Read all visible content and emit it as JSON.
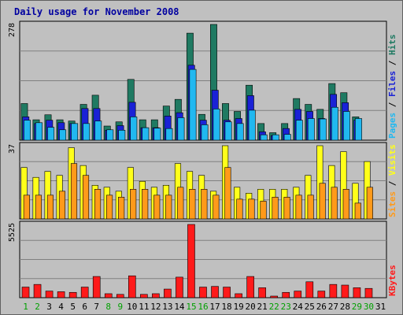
{
  "chart_data": {
    "title": "Daily usage for November 2008",
    "type": "bar",
    "x": [
      "1",
      "2",
      "3",
      "4",
      "5",
      "6",
      "7",
      "8",
      "9",
      "10",
      "11",
      "12",
      "13",
      "14",
      "15",
      "16",
      "17",
      "18",
      "19",
      "20",
      "21",
      "22",
      "23",
      "24",
      "25",
      "26",
      "27",
      "28",
      "29",
      "30",
      "31"
    ],
    "weekend_days": [
      "1",
      "2",
      "8",
      "9",
      "15",
      "16",
      "22",
      "23",
      "29",
      "30"
    ],
    "panels": [
      {
        "name": "hits-files-pages",
        "ytick": "278",
        "ymax": 278,
        "legend": [
          "Pages",
          "Files",
          "Hits"
        ],
        "legend_separator": " / ",
        "series": [
          {
            "name": "Hits",
            "color": "#1f7a62",
            "values": [
              88,
              49,
              61,
              49,
              46,
              86,
              108,
              34,
              44,
              146,
              49,
              49,
              82,
              98,
              257,
              62,
              278,
              88,
              69,
              132,
              40,
              18,
              40,
              100,
              86,
              74,
              136,
              114,
              56,
              0,
              0
            ]
          },
          {
            "name": "Files",
            "color": "#1a22d6",
            "values": [
              56,
              40,
              48,
              42,
              40,
              76,
              76,
              24,
              35,
              91,
              30,
              30,
              58,
              66,
              180,
              48,
              120,
              48,
              52,
              107,
              20,
              11,
              28,
              74,
              69,
              52,
              110,
              90,
              48,
              0,
              0
            ]
          },
          {
            "name": "Pages",
            "color": "#21b8f0",
            "values": [
              48,
              42,
              31,
              25,
              40,
              40,
              46,
              25,
              24,
              56,
              30,
              29,
              28,
              54,
              170,
              37,
              75,
              44,
              40,
              72,
              13,
              13,
              14,
              48,
              52,
              51,
              79,
              69,
              52,
              0,
              0
            ]
          }
        ]
      },
      {
        "name": "visits-sites",
        "ytick": "37",
        "ymax": 37,
        "legend": [
          "Sites",
          "Visits"
        ],
        "legend_separator": " / ",
        "series": [
          {
            "name": "Visits",
            "color": "#ffff1a",
            "values": [
              26,
              21,
              24,
              22,
              36,
              27,
              17,
              16,
              14,
              26,
              19,
              16,
              17,
              28,
              24,
              22,
              14,
              37,
              16,
              13,
              15,
              15,
              15,
              16,
              22,
              37,
              27,
              34,
              18,
              29,
              0
            ]
          },
          {
            "name": "Sites",
            "color": "#ff9a1a",
            "values": [
              12,
              12,
              12,
              14,
              28,
              22,
              15,
              12,
              11,
              15,
              15,
              12,
              12,
              16,
              15,
              15,
              12,
              26,
              10,
              10,
              9,
              11,
              11,
              12,
              12,
              18,
              16,
              15,
              8,
              16,
              0
            ]
          }
        ]
      },
      {
        "name": "kbytes",
        "ytick": "5525",
        "ymax": 5525,
        "legend": [
          "KBytes"
        ],
        "legend_separator": "",
        "series": [
          {
            "name": "KBytes",
            "color": "#ff1a1a",
            "values": [
              800,
              1000,
              500,
              450,
              400,
              800,
              1600,
              300,
              250,
              1650,
              250,
              300,
              650,
              1550,
              5525,
              800,
              850,
              800,
              300,
              1600,
              750,
              120,
              400,
              500,
              1200,
              500,
              1000,
              950,
              750,
              700,
              0
            ]
          }
        ]
      }
    ]
  },
  "colors": {
    "background": "#c0c0c0",
    "border": "#606060",
    "title": "#0000a0",
    "gridline": "#808080",
    "weekday_label": "#000000",
    "weekend_label": "#00a000"
  }
}
